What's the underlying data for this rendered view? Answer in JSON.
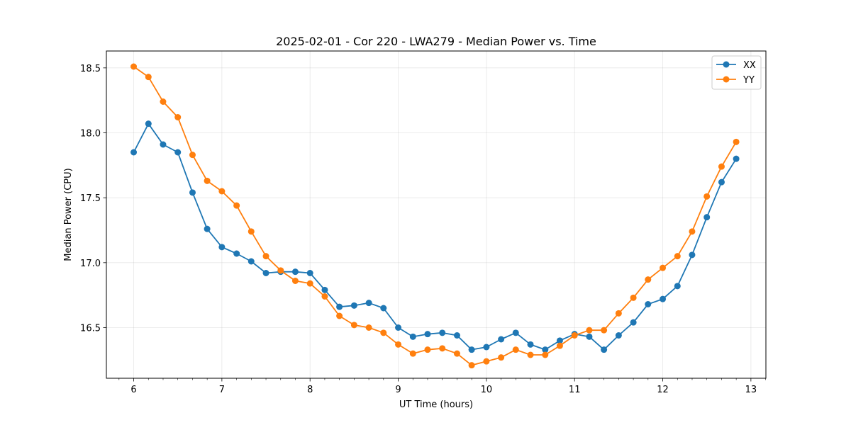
{
  "chart_data": {
    "type": "line",
    "title": "2025-02-01 - Cor 220 - LWA279 - Median Power vs. Time",
    "xlabel": "UT Time (hours)",
    "ylabel": "Median Power (CPU)",
    "xlim": [
      5.69,
      13.17
    ],
    "ylim": [
      16.11,
      18.63
    ],
    "xticks": [
      6,
      7,
      8,
      9,
      10,
      11,
      12,
      13
    ],
    "xtick_labels": [
      "6",
      "7",
      "8",
      "9",
      "10",
      "11",
      "12",
      "13"
    ],
    "yticks": [
      16.5,
      17.0,
      17.5,
      18.0,
      18.5
    ],
    "ytick_labels": [
      "16.5",
      "17.0",
      "17.5",
      "18.0",
      "18.5"
    ],
    "grid": true,
    "legend_position": "top-right",
    "x": [
      6.0,
      6.167,
      6.333,
      6.5,
      6.667,
      6.833,
      7.0,
      7.167,
      7.333,
      7.5,
      7.667,
      7.833,
      8.0,
      8.167,
      8.333,
      8.5,
      8.667,
      8.833,
      9.0,
      9.167,
      9.333,
      9.5,
      9.667,
      9.833,
      10.0,
      10.167,
      10.333,
      10.5,
      10.667,
      10.833,
      11.0,
      11.167,
      11.333,
      11.5,
      11.667,
      11.833,
      12.0,
      12.167,
      12.333,
      12.5,
      12.667,
      12.833
    ],
    "series": [
      {
        "name": "XX",
        "color": "#1f77b4",
        "values": [
          17.85,
          18.07,
          17.91,
          17.85,
          17.54,
          17.26,
          17.12,
          17.07,
          17.01,
          16.92,
          16.93,
          16.93,
          16.92,
          16.79,
          16.66,
          16.67,
          16.69,
          16.65,
          16.5,
          16.43,
          16.45,
          16.46,
          16.44,
          16.33,
          16.35,
          16.41,
          16.46,
          16.37,
          16.33,
          16.4,
          16.45,
          16.43,
          16.33,
          16.44,
          16.54,
          16.68,
          16.72,
          16.82,
          17.06,
          17.35,
          17.62,
          17.8
        ]
      },
      {
        "name": "YY",
        "color": "#ff7f0e",
        "values": [
          18.51,
          18.43,
          18.24,
          18.12,
          17.83,
          17.63,
          17.55,
          17.44,
          17.24,
          17.05,
          16.94,
          16.86,
          16.84,
          16.74,
          16.59,
          16.52,
          16.5,
          16.46,
          16.37,
          16.3,
          16.33,
          16.34,
          16.3,
          16.21,
          16.24,
          16.27,
          16.33,
          16.29,
          16.29,
          16.36,
          16.44,
          16.48,
          16.48,
          16.61,
          16.73,
          16.87,
          16.96,
          17.05,
          17.24,
          17.51,
          17.74,
          17.93
        ]
      }
    ]
  }
}
